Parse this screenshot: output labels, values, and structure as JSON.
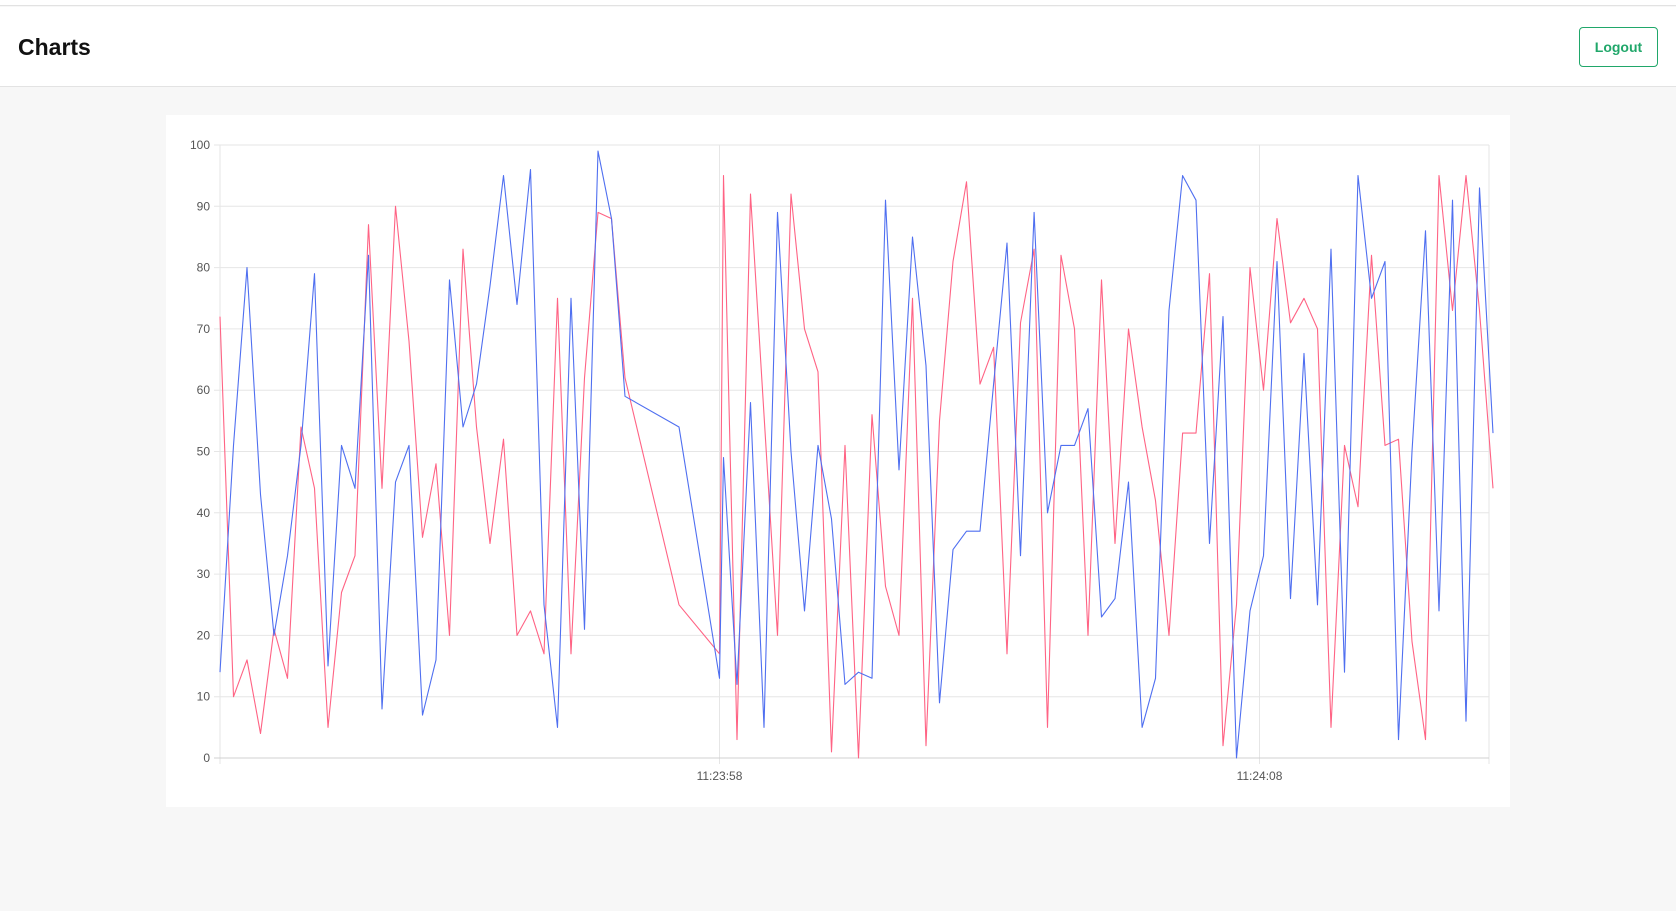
{
  "header": {
    "title": "Charts",
    "logout_label": "Logout"
  },
  "colors": {
    "series_red": "#ff6384",
    "series_blue": "#4f6ff0",
    "grid": "#e6e6e6"
  },
  "chart_data": {
    "type": "line",
    "title": "",
    "xlabel": "",
    "ylabel": "",
    "ylim": [
      0,
      100
    ],
    "y_ticks": [
      "0",
      "10",
      "20",
      "30",
      "40",
      "50",
      "60",
      "70",
      "80",
      "90",
      "100"
    ],
    "x_ticks": [
      {
        "label": "11:23:58",
        "index": 37
      },
      {
        "label": "11:24:08",
        "index": 77
      }
    ],
    "x_count": 95,
    "grid": true,
    "legend": "none",
    "series": [
      {
        "color": "#ff6384",
        "points": [
          [
            0,
            72
          ],
          [
            1,
            10
          ],
          [
            2,
            16
          ],
          [
            3,
            4
          ],
          [
            4,
            21
          ],
          [
            5,
            13
          ],
          [
            6,
            54
          ],
          [
            7,
            44
          ],
          [
            8,
            5
          ],
          [
            9,
            27
          ],
          [
            10,
            33
          ],
          [
            11,
            87
          ],
          [
            12,
            44
          ],
          [
            13,
            90
          ],
          [
            14,
            68
          ],
          [
            15,
            36
          ],
          [
            16,
            48
          ],
          [
            17,
            20
          ],
          [
            18,
            83
          ],
          [
            19,
            54
          ],
          [
            20,
            35
          ],
          [
            21,
            52
          ],
          [
            22,
            20
          ],
          [
            23,
            24
          ],
          [
            24,
            17
          ],
          [
            25,
            75
          ],
          [
            26,
            17
          ],
          [
            27,
            62
          ],
          [
            28,
            89
          ],
          [
            29,
            88
          ],
          [
            30,
            62
          ],
          [
            34,
            25
          ],
          [
            37,
            17
          ],
          [
            37.3,
            95
          ],
          [
            38.3,
            3
          ],
          [
            39.3,
            92
          ],
          [
            41.3,
            20
          ],
          [
            42.3,
            92
          ],
          [
            43.3,
            70
          ],
          [
            44.3,
            63
          ],
          [
            45.3,
            1
          ],
          [
            46.3,
            51
          ],
          [
            47.3,
            0
          ],
          [
            48.3,
            56
          ],
          [
            49.3,
            28
          ],
          [
            50.3,
            20
          ],
          [
            51.3,
            75
          ],
          [
            52.3,
            2
          ],
          [
            53.3,
            55
          ],
          [
            54.3,
            81
          ],
          [
            55.3,
            94
          ],
          [
            56.3,
            61
          ],
          [
            57.3,
            67
          ],
          [
            58.3,
            17
          ],
          [
            59.3,
            71
          ],
          [
            60.3,
            83
          ],
          [
            61.3,
            5
          ],
          [
            62.3,
            82
          ],
          [
            63.3,
            70
          ],
          [
            64.3,
            20
          ],
          [
            65.3,
            78
          ],
          [
            66.3,
            35
          ],
          [
            67.3,
            70
          ],
          [
            68.3,
            54
          ],
          [
            69.3,
            42
          ],
          [
            70.3,
            20
          ],
          [
            71.3,
            53
          ],
          [
            72.3,
            53
          ],
          [
            73.3,
            79
          ],
          [
            74.3,
            2
          ],
          [
            75.3,
            25
          ],
          [
            76.3,
            80
          ],
          [
            77.3,
            60
          ],
          [
            78.3,
            88
          ],
          [
            79.3,
            71
          ],
          [
            80.3,
            75
          ],
          [
            81.3,
            70
          ],
          [
            82.3,
            5
          ],
          [
            83.3,
            51
          ],
          [
            84.3,
            41
          ],
          [
            85.3,
            82
          ],
          [
            86.3,
            51
          ],
          [
            87.3,
            52
          ],
          [
            88.3,
            19
          ],
          [
            89.3,
            3
          ],
          [
            90.3,
            95
          ],
          [
            91.3,
            73
          ],
          [
            92.3,
            95
          ],
          [
            93.3,
            73
          ],
          [
            94.3,
            44
          ]
        ]
      },
      {
        "color": "#4f6ff0",
        "points": [
          [
            0,
            14
          ],
          [
            1,
            51
          ],
          [
            2,
            80
          ],
          [
            3,
            43
          ],
          [
            4,
            20
          ],
          [
            5,
            33
          ],
          [
            6,
            51
          ],
          [
            7,
            79
          ],
          [
            8,
            15
          ],
          [
            9,
            51
          ],
          [
            10,
            44
          ],
          [
            11,
            82
          ],
          [
            12,
            8
          ],
          [
            13,
            45
          ],
          [
            14,
            51
          ],
          [
            15,
            7
          ],
          [
            16,
            16
          ],
          [
            17,
            78
          ],
          [
            18,
            54
          ],
          [
            19,
            61
          ],
          [
            20,
            77
          ],
          [
            21,
            95
          ],
          [
            22,
            74
          ],
          [
            23,
            96
          ],
          [
            24,
            25
          ],
          [
            25,
            5
          ],
          [
            26,
            75
          ],
          [
            27,
            21
          ],
          [
            28,
            99
          ],
          [
            29,
            88
          ],
          [
            30,
            59
          ],
          [
            34,
            54
          ],
          [
            37,
            13
          ],
          [
            37.3,
            49
          ],
          [
            38.3,
            12
          ],
          [
            39.3,
            58
          ],
          [
            40.3,
            5
          ],
          [
            41.3,
            89
          ],
          [
            42.3,
            50
          ],
          [
            43.3,
            24
          ],
          [
            44.3,
            51
          ],
          [
            45.3,
            39
          ],
          [
            46.3,
            12
          ],
          [
            47.3,
            14
          ],
          [
            48.3,
            13
          ],
          [
            49.3,
            91
          ],
          [
            50.3,
            47
          ],
          [
            51.3,
            85
          ],
          [
            52.3,
            64
          ],
          [
            53.3,
            9
          ],
          [
            54.3,
            34
          ],
          [
            55.3,
            37
          ],
          [
            56.3,
            37
          ],
          [
            57.3,
            61
          ],
          [
            58.3,
            84
          ],
          [
            59.3,
            33
          ],
          [
            60.3,
            89
          ],
          [
            61.3,
            40
          ],
          [
            62.3,
            51
          ],
          [
            63.3,
            51
          ],
          [
            64.3,
            57
          ],
          [
            65.3,
            23
          ],
          [
            66.3,
            26
          ],
          [
            67.3,
            45
          ],
          [
            68.3,
            5
          ],
          [
            69.3,
            13
          ],
          [
            70.3,
            73
          ],
          [
            71.3,
            95
          ],
          [
            72.3,
            91
          ],
          [
            73.3,
            35
          ],
          [
            74.3,
            72
          ],
          [
            75.3,
            0
          ],
          [
            76.3,
            24
          ],
          [
            77.3,
            33
          ],
          [
            78.3,
            81
          ],
          [
            79.3,
            26
          ],
          [
            80.3,
            66
          ],
          [
            81.3,
            25
          ],
          [
            82.3,
            83
          ],
          [
            83.3,
            14
          ],
          [
            84.3,
            95
          ],
          [
            85.3,
            75
          ],
          [
            86.3,
            81
          ],
          [
            87.3,
            3
          ],
          [
            88.3,
            50
          ],
          [
            89.3,
            86
          ],
          [
            90.3,
            24
          ],
          [
            91.3,
            91
          ],
          [
            92.3,
            6
          ],
          [
            93.3,
            93
          ],
          [
            94.3,
            53
          ]
        ]
      }
    ]
  }
}
